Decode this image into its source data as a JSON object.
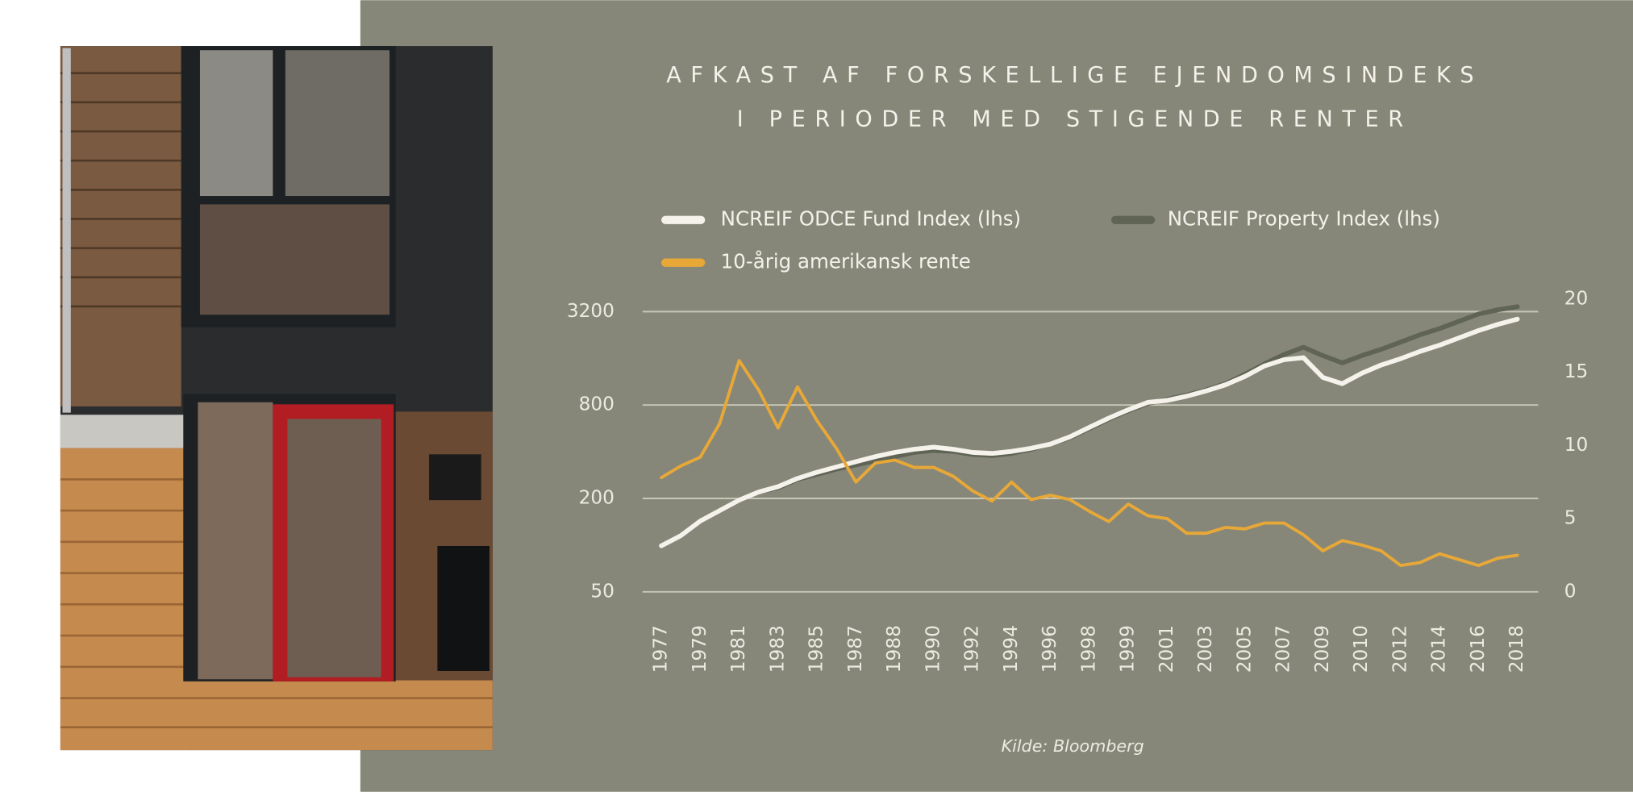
{
  "chart_data": {
    "type": "line",
    "title": [
      "AFKAST AF FORSKELLIGE EJENDOMSINDEKS",
      "I PERIODER MED STIGENDE RENTER"
    ],
    "source": "Kilde: Bloomberg",
    "categories": [
      "1977",
      null,
      "1979",
      null,
      "1981",
      null,
      "1983",
      null,
      "1985",
      null,
      "1987",
      null,
      "1988",
      null,
      "1990",
      null,
      "1992",
      null,
      "1994",
      null,
      "1996",
      null,
      "1998",
      null,
      "1999",
      null,
      "2001",
      null,
      "2003",
      null,
      "2005",
      null,
      "2007",
      null,
      "2009",
      null,
      "2010",
      null,
      "2012",
      null,
      "2014",
      null,
      "2016",
      null,
      "2018"
    ],
    "yscale": "log",
    "ylim": [
      50,
      3200
    ],
    "yticks": [
      50,
      200,
      800,
      3200
    ],
    "y2lim": [
      0,
      20
    ],
    "y2ticks": [
      0,
      5,
      10,
      15,
      20
    ],
    "grid": true,
    "series": [
      {
        "name": "NCREIF ODCE Fund Index (lhs)",
        "color": "#f4f2ea",
        "axis": "y",
        "values": [
          99,
          115,
          143,
          167,
          195,
          220,
          238,
          269,
          295,
          319,
          345,
          372,
          396,
          415,
          428,
          415,
          396,
          390,
          402,
          421,
          448,
          499,
          574,
          659,
          746,
          832,
          857,
          912,
          986,
          1081,
          1224,
          1429,
          1567,
          1616,
          1205,
          1098,
          1282,
          1449,
          1592,
          1774,
          1945,
          2167,
          2415,
          2649,
          2864
        ]
      },
      {
        "name": "NCREIF Property Index (lhs)",
        "color": "#5f6455",
        "axis": "y",
        "values": [
          99,
          115,
          143,
          167,
          195,
          220,
          234,
          265,
          286,
          309,
          329,
          350,
          372,
          396,
          408,
          402,
          384,
          378,
          390,
          415,
          448,
          492,
          565,
          649,
          735,
          819,
          871,
          927,
          1000,
          1098,
          1262,
          1472,
          1692,
          1886,
          1666,
          1495,
          1666,
          1828,
          2037,
          2270,
          2489,
          2773,
          3090,
          3289,
          3443
        ]
      },
      {
        "name": "10-årig amerikansk rente",
        "color": "#e8a838",
        "axis": "y2",
        "values": [
          7.8,
          8.6,
          9.2,
          11.5,
          15.8,
          13.8,
          11.2,
          14.0,
          11.7,
          9.8,
          7.5,
          8.8,
          9.0,
          8.5,
          8.5,
          7.9,
          6.9,
          6.2,
          7.5,
          6.3,
          6.6,
          6.3,
          5.5,
          4.8,
          6.0,
          5.2,
          5.0,
          4.0,
          4.0,
          4.4,
          4.3,
          4.7,
          4.7,
          3.9,
          2.8,
          3.5,
          3.2,
          2.8,
          1.8,
          2.0,
          2.6,
          2.2,
          1.8,
          2.3,
          2.5
        ]
      }
    ]
  }
}
